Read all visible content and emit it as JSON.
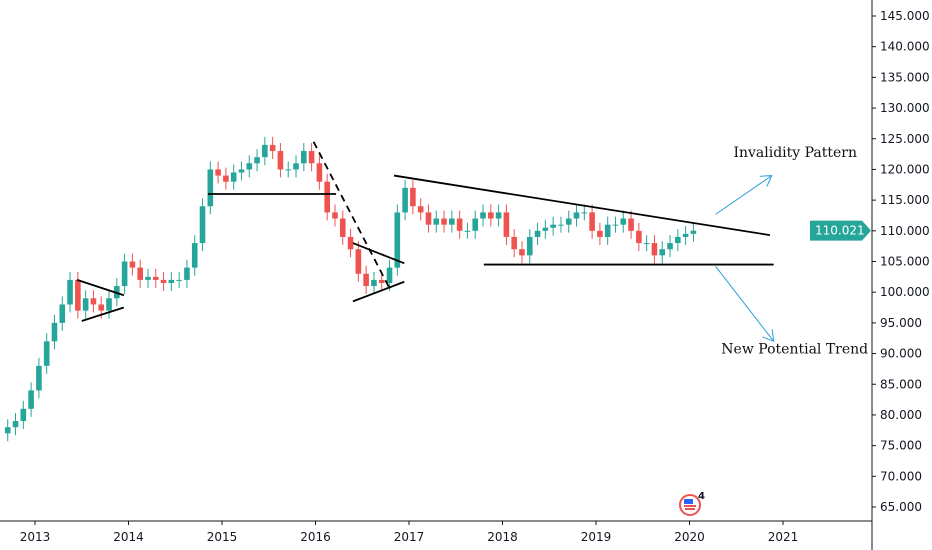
{
  "chart_data": {
    "type": "candlestick",
    "title": "",
    "ylim": [
      65,
      145
    ],
    "xlim": [
      2012.62,
      2021.55
    ],
    "y_ticks": [
      "145.000",
      "140.000",
      "135.000",
      "130.000",
      "125.000",
      "120.000",
      "115.000",
      "110.000",
      "105.000",
      "100.000",
      "95.000",
      "90.000",
      "85.000",
      "80.000",
      "75.000",
      "70.000",
      "65.000"
    ],
    "x_ticks": [
      "2013",
      "2014",
      "2015",
      "2016",
      "2017",
      "2018",
      "2019",
      "2020",
      "2021"
    ],
    "last_price": "110.021",
    "colors": {
      "up": "#26a69a",
      "down": "#ef5350",
      "last_price_bg": "#26a69a",
      "arrow": "#2a9fd6",
      "line": "#000000"
    },
    "closes": [
      {
        "t": "2012-09",
        "c": 78
      },
      {
        "t": "2012-10",
        "c": 79
      },
      {
        "t": "2012-11",
        "c": 81
      },
      {
        "t": "2012-12",
        "c": 84
      },
      {
        "t": "2013-01",
        "c": 88
      },
      {
        "t": "2013-02",
        "c": 92
      },
      {
        "t": "2013-03",
        "c": 95
      },
      {
        "t": "2013-04",
        "c": 98
      },
      {
        "t": "2013-05",
        "c": 102
      },
      {
        "t": "2013-06",
        "c": 97
      },
      {
        "t": "2013-07",
        "c": 99
      },
      {
        "t": "2013-08",
        "c": 98
      },
      {
        "t": "2013-09",
        "c": 97
      },
      {
        "t": "2013-10",
        "c": 99
      },
      {
        "t": "2013-11",
        "c": 101
      },
      {
        "t": "2013-12",
        "c": 105
      },
      {
        "t": "2014-01",
        "c": 104
      },
      {
        "t": "2014-02",
        "c": 102
      },
      {
        "t": "2014-03",
        "c": 102.5
      },
      {
        "t": "2014-04",
        "c": 102
      },
      {
        "t": "2014-05",
        "c": 101.5
      },
      {
        "t": "2014-06",
        "c": 102
      },
      {
        "t": "2014-07",
        "c": 102
      },
      {
        "t": "2014-08",
        "c": 104
      },
      {
        "t": "2014-09",
        "c": 108
      },
      {
        "t": "2014-10",
        "c": 114
      },
      {
        "t": "2014-11",
        "c": 120
      },
      {
        "t": "2014-12",
        "c": 119
      },
      {
        "t": "2015-01",
        "c": 118
      },
      {
        "t": "2015-02",
        "c": 119.5
      },
      {
        "t": "2015-03",
        "c": 120
      },
      {
        "t": "2015-04",
        "c": 121
      },
      {
        "t": "2015-05",
        "c": 122
      },
      {
        "t": "2015-06",
        "c": 124
      },
      {
        "t": "2015-07",
        "c": 123
      },
      {
        "t": "2015-08",
        "c": 120
      },
      {
        "t": "2015-09",
        "c": 120
      },
      {
        "t": "2015-10",
        "c": 121
      },
      {
        "t": "2015-11",
        "c": 123
      },
      {
        "t": "2015-12",
        "c": 121
      },
      {
        "t": "2016-01",
        "c": 118
      },
      {
        "t": "2016-02",
        "c": 113
      },
      {
        "t": "2016-03",
        "c": 112
      },
      {
        "t": "2016-04",
        "c": 109
      },
      {
        "t": "2016-05",
        "c": 107
      },
      {
        "t": "2016-06",
        "c": 103
      },
      {
        "t": "2016-07",
        "c": 101
      },
      {
        "t": "2016-08",
        "c": 102
      },
      {
        "t": "2016-09",
        "c": 101.5
      },
      {
        "t": "2016-10",
        "c": 104
      },
      {
        "t": "2016-11",
        "c": 113
      },
      {
        "t": "2016-12",
        "c": 117
      },
      {
        "t": "2017-01",
        "c": 114
      },
      {
        "t": "2017-02",
        "c": 113
      },
      {
        "t": "2017-03",
        "c": 111
      },
      {
        "t": "2017-04",
        "c": 112
      },
      {
        "t": "2017-05",
        "c": 111
      },
      {
        "t": "2017-06",
        "c": 112
      },
      {
        "t": "2017-07",
        "c": 110
      },
      {
        "t": "2017-08",
        "c": 110
      },
      {
        "t": "2017-09",
        "c": 112
      },
      {
        "t": "2017-10",
        "c": 113
      },
      {
        "t": "2017-11",
        "c": 112
      },
      {
        "t": "2017-12",
        "c": 113
      },
      {
        "t": "2018-01",
        "c": 109
      },
      {
        "t": "2018-02",
        "c": 107
      },
      {
        "t": "2018-03",
        "c": 106
      },
      {
        "t": "2018-04",
        "c": 109
      },
      {
        "t": "2018-05",
        "c": 110
      },
      {
        "t": "2018-06",
        "c": 110.5
      },
      {
        "t": "2018-07",
        "c": 111
      },
      {
        "t": "2018-08",
        "c": 111
      },
      {
        "t": "2018-09",
        "c": 112
      },
      {
        "t": "2018-10",
        "c": 113
      },
      {
        "t": "2018-11",
        "c": 113
      },
      {
        "t": "2018-12",
        "c": 110
      },
      {
        "t": "2019-01",
        "c": 109
      },
      {
        "t": "2019-02",
        "c": 111
      },
      {
        "t": "2019-03",
        "c": 111
      },
      {
        "t": "2019-04",
        "c": 112
      },
      {
        "t": "2019-05",
        "c": 110
      },
      {
        "t": "2019-06",
        "c": 108
      },
      {
        "t": "2019-07",
        "c": 108
      },
      {
        "t": "2019-08",
        "c": 106
      },
      {
        "t": "2019-09",
        "c": 107
      },
      {
        "t": "2019-10",
        "c": 108
      },
      {
        "t": "2019-11",
        "c": 109
      },
      {
        "t": "2019-12",
        "c": 109.5
      },
      {
        "t": "2020-01",
        "c": 110.021
      }
    ],
    "drawings": [
      {
        "kind": "line",
        "from": [
          2013.45,
          102
        ],
        "to": [
          2013.95,
          99.5
        ]
      },
      {
        "kind": "line",
        "from": [
          2013.5,
          95.3
        ],
        "to": [
          2013.95,
          97.5
        ]
      },
      {
        "kind": "line",
        "from": [
          2014.85,
          116
        ],
        "to": [
          2016.22,
          116
        ]
      },
      {
        "kind": "dashed",
        "from": [
          2015.98,
          124.5
        ],
        "to": [
          2016.8,
          100.4
        ]
      },
      {
        "kind": "line",
        "from": [
          2016.4,
          108
        ],
        "to": [
          2016.95,
          104.7
        ]
      },
      {
        "kind": "line",
        "from": [
          2016.4,
          98.5
        ],
        "to": [
          2016.95,
          101.7
        ]
      },
      {
        "kind": "line",
        "from": [
          2016.84,
          119
        ],
        "to": [
          2020.86,
          109.3
        ]
      },
      {
        "kind": "line",
        "from": [
          2017.8,
          104.5
        ],
        "to": [
          2020.9,
          104.5
        ]
      },
      {
        "kind": "arrow",
        "from": [
          2020.28,
          112.7
        ],
        "to": [
          2020.88,
          119
        ]
      },
      {
        "kind": "arrow",
        "from": [
          2020.28,
          104.2
        ],
        "to": [
          2020.9,
          92
        ]
      }
    ],
    "annotations": [
      {
        "text": "Invalidity Pattern",
        "at": [
          2020.47,
          122
        ]
      },
      {
        "text": "New Potential Trend",
        "at": [
          2020.34,
          90
        ]
      }
    ],
    "logo_badge": "4"
  }
}
